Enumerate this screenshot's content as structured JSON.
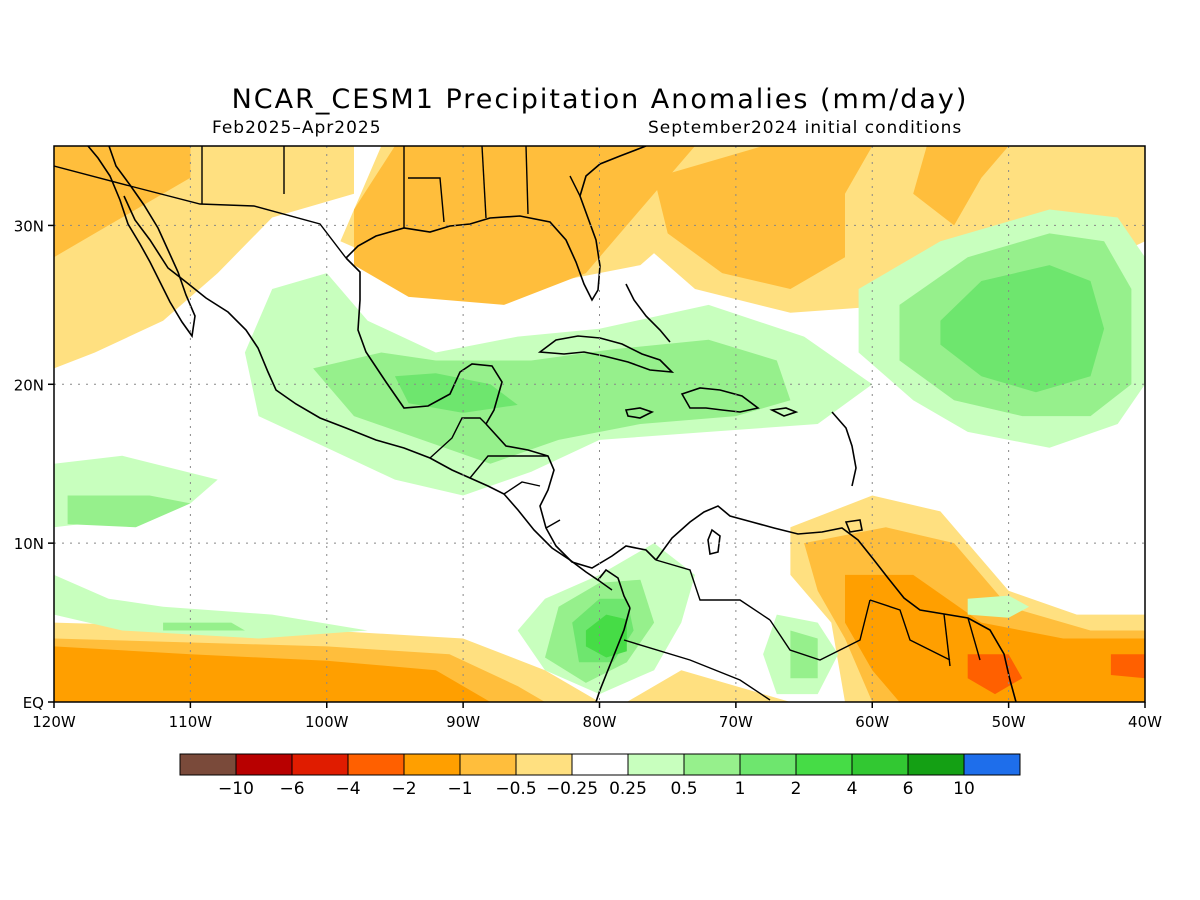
{
  "title": "NCAR_CESM1 Precipitation Anomalies (mm/day)",
  "period": "Feb2025–Apr2025",
  "initial_conditions": "September2024 initial conditions",
  "map": {
    "lon_range": [
      -120,
      -40
    ],
    "lat_range": [
      0,
      35
    ],
    "lat_ticks": [
      {
        "value": 30,
        "label": "30N"
      },
      {
        "value": 20,
        "label": "20N"
      },
      {
        "value": 10,
        "label": "10N"
      },
      {
        "value": 0,
        "label": "EQ"
      }
    ],
    "lon_ticks": [
      {
        "value": -120,
        "label": "120W"
      },
      {
        "value": -110,
        "label": "110W"
      },
      {
        "value": -100,
        "label": "100W"
      },
      {
        "value": -90,
        "label": "90W"
      },
      {
        "value": -80,
        "label": "80W"
      },
      {
        "value": -70,
        "label": "70W"
      },
      {
        "value": -60,
        "label": "60W"
      },
      {
        "value": -50,
        "label": "50W"
      },
      {
        "value": -40,
        "label": "40W"
      }
    ]
  },
  "colorbar": {
    "colors": [
      "#7a4a3a",
      "#b80000",
      "#e01c00",
      "#ff6000",
      "#ff9f00",
      "#ffbe3c",
      "#ffe080",
      "#ffffff",
      "#c8ffbe",
      "#96f08c",
      "#6ee66e",
      "#46dc46",
      "#32c832",
      "#14a014",
      "#1e6eeb"
    ],
    "labels": [
      "−10",
      "−6",
      "−4",
      "−2",
      "−1",
      "−0.5",
      "−0.25",
      "0.25",
      "0.5",
      "1",
      "2",
      "4",
      "6",
      "10"
    ]
  },
  "anomaly_regions": [
    {
      "level": "-0.25..-0.5",
      "color": "#ffe080",
      "points": [
        [
          -120,
          35
        ],
        [
          -98,
          35
        ],
        [
          -98,
          32
        ],
        [
          -104,
          30.5
        ],
        [
          -108,
          27
        ],
        [
          -112,
          24
        ],
        [
          -117,
          22
        ],
        [
          -120,
          21
        ]
      ]
    },
    {
      "level": "-0.25..-0.5",
      "color": "#ffe080",
      "points": [
        [
          -96,
          35
        ],
        [
          -65,
          35
        ],
        [
          -71,
          32
        ],
        [
          -77,
          27.5
        ],
        [
          -83,
          26.5
        ],
        [
          -89,
          27
        ],
        [
          -95,
          27.5
        ],
        [
          -99,
          29
        ]
      ]
    },
    {
      "level": "-0.25..-0.5",
      "color": "#ffe080",
      "points": [
        [
          -78,
          34
        ],
        [
          -70,
          35
        ],
        [
          -40,
          35
        ],
        [
          -40,
          29
        ],
        [
          -45,
          27
        ],
        [
          -58,
          25
        ],
        [
          -66,
          24.5
        ],
        [
          -73,
          26
        ],
        [
          -77,
          29
        ]
      ]
    },
    {
      "level": "-0.25..-0.5",
      "color": "#ffe080",
      "points": [
        [
          -120,
          5
        ],
        [
          -100,
          4.5
        ],
        [
          -90,
          4
        ],
        [
          -84,
          2
        ],
        [
          -80,
          0
        ],
        [
          -120,
          0
        ]
      ]
    },
    {
      "level": "-0.25..-0.5",
      "color": "#ffe080",
      "points": [
        [
          -78,
          0
        ],
        [
          -74,
          2
        ],
        [
          -70,
          1
        ],
        [
          -66,
          0
        ]
      ]
    },
    {
      "level": "-0.25..-0.5",
      "color": "#ffe080",
      "points": [
        [
          -66,
          11
        ],
        [
          -60,
          13
        ],
        [
          -55,
          12
        ],
        [
          -50,
          7
        ],
        [
          -45,
          5.5
        ],
        [
          -40,
          5.5
        ],
        [
          -40,
          0
        ],
        [
          -62,
          0
        ],
        [
          -63,
          5
        ],
        [
          -66,
          8
        ]
      ]
    },
    {
      "level": "-0.5..-1",
      "color": "#ffbe3c",
      "points": [
        [
          -120,
          35
        ],
        [
          -110,
          35
        ],
        [
          -110,
          33
        ],
        [
          -114,
          31
        ],
        [
          -118,
          29
        ],
        [
          -120,
          28
        ]
      ]
    },
    {
      "level": "-0.5..-1",
      "color": "#ffbe3c",
      "points": [
        [
          -95,
          35
        ],
        [
          -73,
          35
        ],
        [
          -77,
          31
        ],
        [
          -81,
          27
        ],
        [
          -87,
          25
        ],
        [
          -94,
          25.5
        ],
        [
          -98,
          27.5
        ],
        [
          -98,
          31
        ]
      ]
    },
    {
      "level": "-0.5..-1",
      "color": "#ffbe3c",
      "points": [
        [
          -76,
          33
        ],
        [
          -68,
          35
        ],
        [
          -60,
          35
        ],
        [
          -62,
          32
        ],
        [
          -62,
          28
        ],
        [
          -66,
          26
        ],
        [
          -71,
          27
        ],
        [
          -75,
          29.5
        ]
      ]
    },
    {
      "level": "-0.5..-1",
      "color": "#ffbe3c",
      "points": [
        [
          -56,
          35
        ],
        [
          -50,
          35
        ],
        [
          -52,
          33
        ],
        [
          -54,
          30
        ],
        [
          -57,
          32
        ]
      ]
    },
    {
      "level": "-0.5..-1",
      "color": "#ffbe3c",
      "points": [
        [
          -120,
          4
        ],
        [
          -100,
          3.5
        ],
        [
          -91,
          3
        ],
        [
          -86,
          1
        ],
        [
          -84,
          0
        ],
        [
          -120,
          0
        ]
      ]
    },
    {
      "level": "-0.5..-1",
      "color": "#ffbe3c",
      "points": [
        [
          -65,
          10
        ],
        [
          -59,
          11
        ],
        [
          -54,
          10
        ],
        [
          -50,
          6
        ],
        [
          -44,
          4.5
        ],
        [
          -40,
          4.5
        ],
        [
          -40,
          0
        ],
        [
          -60,
          0
        ],
        [
          -62,
          4
        ],
        [
          -64,
          7
        ]
      ]
    },
    {
      "level": "-1..-2",
      "color": "#ff9f00",
      "points": [
        [
          -120,
          3.5
        ],
        [
          -110,
          3
        ],
        [
          -100,
          2.6
        ],
        [
          -92,
          2
        ],
        [
          -88,
          0
        ],
        [
          -120,
          0
        ]
      ]
    },
    {
      "level": "-1..-2",
      "color": "#ff9f00",
      "points": [
        [
          -62,
          8
        ],
        [
          -57,
          8
        ],
        [
          -52,
          5
        ],
        [
          -46,
          4
        ],
        [
          -40,
          4
        ],
        [
          -40,
          0
        ],
        [
          -58,
          0
        ],
        [
          -60,
          2
        ],
        [
          -62,
          5
        ]
      ]
    },
    {
      "level": "-2..-4",
      "color": "#ff6000",
      "points": [
        [
          -53,
          3
        ],
        [
          -50,
          3
        ],
        [
          -49,
          1.5
        ],
        [
          -51,
          0.5
        ],
        [
          -53,
          1.5
        ]
      ]
    },
    {
      "level": "-2..-4",
      "color": "#ff6000",
      "points": [
        [
          -42.5,
          3
        ],
        [
          -40,
          3
        ],
        [
          -40,
          1.5
        ],
        [
          -42.5,
          1.7
        ]
      ]
    },
    {
      "level": "0.25..0.5",
      "color": "#c8ffbe",
      "points": [
        [
          -104,
          26
        ],
        [
          -100,
          27
        ],
        [
          -97,
          24
        ],
        [
          -92,
          22
        ],
        [
          -86,
          23
        ],
        [
          -80,
          23.5
        ],
        [
          -72,
          25
        ],
        [
          -65,
          23
        ],
        [
          -60,
          20
        ],
        [
          -64,
          17.5
        ],
        [
          -72,
          17
        ],
        [
          -80,
          16.5
        ],
        [
          -85,
          14.5
        ],
        [
          -90,
          13
        ],
        [
          -95,
          14
        ],
        [
          -100,
          16
        ],
        [
          -105,
          18
        ],
        [
          -106,
          22
        ]
      ]
    },
    {
      "level": "0.25..0.5",
      "color": "#c8ffbe",
      "points": [
        [
          -120,
          15
        ],
        [
          -115,
          15.5
        ],
        [
          -108,
          14
        ],
        [
          -110,
          12.5
        ],
        [
          -115,
          11.5
        ],
        [
          -120,
          11
        ]
      ]
    },
    {
      "level": "0.25..0.5",
      "color": "#c8ffbe",
      "points": [
        [
          -120,
          8
        ],
        [
          -116,
          6.5
        ],
        [
          -112,
          6
        ],
        [
          -104,
          5.5
        ],
        [
          -97,
          4.5
        ],
        [
          -105,
          4
        ],
        [
          -115,
          4.5
        ],
        [
          -120,
          5.5
        ]
      ]
    },
    {
      "level": "0.25..0.5",
      "color": "#c8ffbe",
      "points": [
        [
          -84,
          6.5
        ],
        [
          -80,
          8
        ],
        [
          -76,
          10
        ],
        [
          -73,
          8
        ],
        [
          -74,
          5
        ],
        [
          -76,
          2
        ],
        [
          -80,
          0.5
        ],
        [
          -84,
          2
        ],
        [
          -86,
          4.5
        ]
      ]
    },
    {
      "level": "0.25..0.5",
      "color": "#c8ffbe",
      "points": [
        [
          -67,
          5.5
        ],
        [
          -64,
          5
        ],
        [
          -62.5,
          3
        ],
        [
          -64,
          0.5
        ],
        [
          -67,
          0.5
        ],
        [
          -68,
          3
        ]
      ]
    },
    {
      "level": "0.25..0.5",
      "color": "#c8ffbe",
      "points": [
        [
          -61,
          26
        ],
        [
          -55,
          29
        ],
        [
          -47,
          31
        ],
        [
          -42,
          30.5
        ],
        [
          -40,
          28
        ],
        [
          -40,
          20
        ],
        [
          -42,
          17.5
        ],
        [
          -47,
          16
        ],
        [
          -53,
          17
        ],
        [
          -57,
          19
        ],
        [
          -61,
          22
        ]
      ]
    },
    {
      "level": "0.25..0.5",
      "color": "#c8ffbe",
      "points": [
        [
          -53,
          6.5
        ],
        [
          -50,
          6.7
        ],
        [
          -48.5,
          6
        ],
        [
          -50,
          5.3
        ],
        [
          -53,
          5.5
        ]
      ]
    },
    {
      "level": "0.5..1",
      "color": "#96f08c",
      "points": [
        [
          -101,
          21
        ],
        [
          -96,
          22
        ],
        [
          -92,
          21.5
        ],
        [
          -85,
          21.5
        ],
        [
          -79,
          22.2
        ],
        [
          -72,
          22.8
        ],
        [
          -67,
          21.5
        ],
        [
          -66,
          19
        ],
        [
          -70,
          18
        ],
        [
          -77,
          17.5
        ],
        [
          -83,
          16.5
        ],
        [
          -88,
          15
        ],
        [
          -93,
          16.5
        ],
        [
          -98,
          18
        ]
      ]
    },
    {
      "level": "0.5..1",
      "color": "#96f08c",
      "points": [
        [
          -119,
          13
        ],
        [
          -113,
          13
        ],
        [
          -110,
          12.5
        ],
        [
          -114,
          11
        ],
        [
          -119,
          11.2
        ]
      ]
    },
    {
      "level": "0.5..1",
      "color": "#96f08c",
      "points": [
        [
          -112,
          5
        ],
        [
          -107,
          5
        ],
        [
          -106,
          4.5
        ],
        [
          -112,
          4.5
        ]
      ]
    },
    {
      "level": "0.5..1",
      "color": "#96f08c",
      "points": [
        [
          -83,
          6
        ],
        [
          -80,
          7.5
        ],
        [
          -77,
          7.7
        ],
        [
          -76,
          5
        ],
        [
          -78,
          2.5
        ],
        [
          -81,
          1.2
        ],
        [
          -84,
          2.8
        ]
      ]
    },
    {
      "level": "0.5..1",
      "color": "#96f08c",
      "points": [
        [
          -66,
          4.5
        ],
        [
          -64,
          4
        ],
        [
          -64,
          1.5
        ],
        [
          -66,
          1.5
        ]
      ]
    },
    {
      "level": "0.5..1",
      "color": "#96f08c",
      "points": [
        [
          -58,
          25
        ],
        [
          -53,
          28
        ],
        [
          -47,
          29.5
        ],
        [
          -43,
          29
        ],
        [
          -41,
          26
        ],
        [
          -41,
          20
        ],
        [
          -44,
          18
        ],
        [
          -49,
          18
        ],
        [
          -54,
          19
        ],
        [
          -58,
          21.5
        ]
      ]
    },
    {
      "level": "1..2",
      "color": "#6ee66e",
      "points": [
        [
          -95,
          20.5
        ],
        [
          -92,
          20.7
        ],
        [
          -88,
          20
        ],
        [
          -86,
          18.7
        ],
        [
          -90,
          18.2
        ],
        [
          -94,
          18.8
        ]
      ]
    },
    {
      "level": "1..2",
      "color": "#6ee66e",
      "points": [
        [
          -82,
          5
        ],
        [
          -80,
          6.5
        ],
        [
          -78,
          6.5
        ],
        [
          -77.5,
          4.5
        ],
        [
          -79,
          2.5
        ],
        [
          -81.5,
          2.5
        ]
      ]
    },
    {
      "level": "1..2",
      "color": "#6ee66e",
      "points": [
        [
          -55,
          24
        ],
        [
          -52,
          26.5
        ],
        [
          -47,
          27.5
        ],
        [
          -44,
          26.5
        ],
        [
          -43,
          23.5
        ],
        [
          -44,
          20.5
        ],
        [
          -48,
          19.5
        ],
        [
          -52,
          20.5
        ],
        [
          -55,
          22.5
        ]
      ]
    },
    {
      "level": "2..4",
      "color": "#46dc46",
      "points": [
        [
          -81,
          4.5
        ],
        [
          -79.5,
          5.5
        ],
        [
          -78,
          5.2
        ],
        [
          -78,
          3.2
        ],
        [
          -79.5,
          2.8
        ],
        [
          -81,
          3.5
        ]
      ]
    }
  ]
}
